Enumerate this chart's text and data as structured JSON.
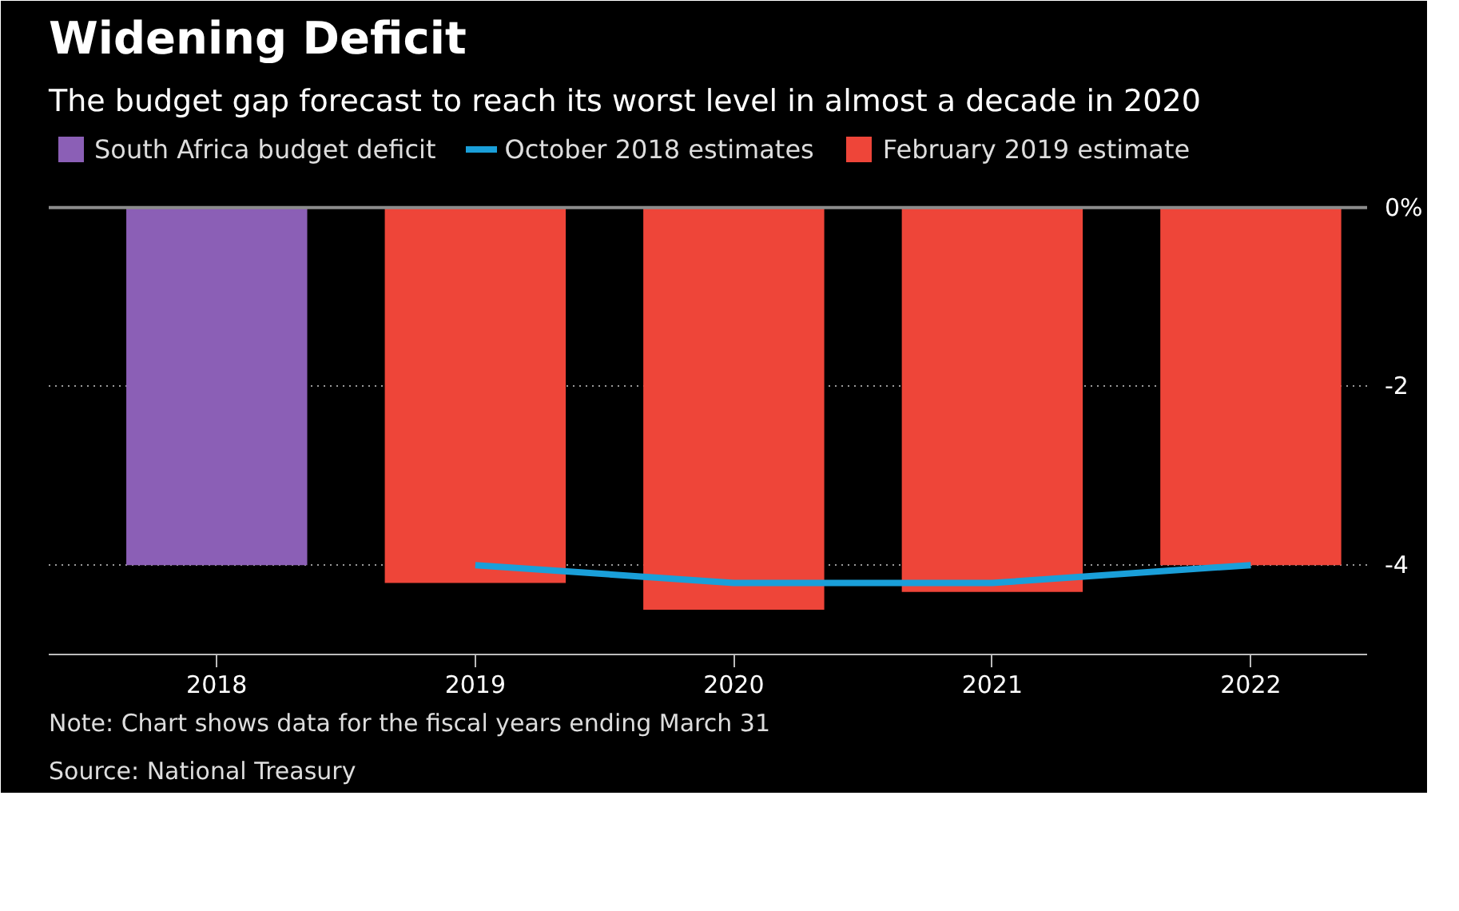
{
  "chart_data": {
    "type": "bar",
    "title": "Widening Deficit",
    "subtitle": "The budget gap forecast to reach its worst level in almost a decade in 2020",
    "categories": [
      "2018",
      "2019",
      "2020",
      "2021",
      "2022"
    ],
    "series": [
      {
        "name": "South Africa budget deficit",
        "color": "#8b5fb6",
        "values": [
          -4.0,
          null,
          null,
          null,
          null
        ]
      },
      {
        "name": "October 2018 estimates",
        "type": "line",
        "color": "#1a9fd9",
        "values": [
          null,
          -4.0,
          -4.2,
          -4.2,
          -4.0
        ]
      },
      {
        "name": "February 2019 estimate",
        "color": "#ee4539",
        "values": [
          null,
          -4.2,
          -4.5,
          -4.3,
          -4.0
        ]
      }
    ],
    "ylim": [
      -5,
      0.9
    ],
    "yticks": [
      {
        "value": 0,
        "label": "0%"
      },
      -2,
      -4
    ],
    "grid": "y",
    "legend": "top",
    "ref_lines": [
      {
        "axis": "y",
        "value": 0,
        "color": "#8c8c8c",
        "line_style": "solid"
      }
    ],
    "annotations": [
      "Note: Chart shows data for the fiscal years ending March 31",
      "Source: National Treasury"
    ]
  }
}
